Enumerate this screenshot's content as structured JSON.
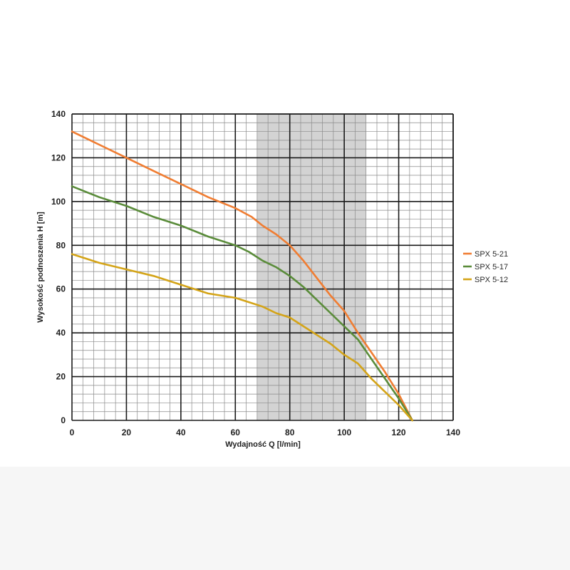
{
  "chart_data": {
    "type": "line",
    "title": "",
    "xlabel": "Wydajność Q [l/min]",
    "ylabel": "Wysokość podnoszenia H [m]",
    "xlim": [
      0,
      140
    ],
    "ylim": [
      0,
      140
    ],
    "x_ticks": [
      0,
      20,
      40,
      60,
      80,
      100,
      120,
      140
    ],
    "y_ticks": [
      0,
      20,
      40,
      60,
      80,
      100,
      120,
      140
    ],
    "x_minor_step": 4,
    "y_minor_step": 4,
    "grid": true,
    "highlight_band": {
      "x_from": 68,
      "x_to": 108,
      "color": "#d3d3d3"
    },
    "legend_position": "right",
    "series": [
      {
        "name": "SPX 5-21",
        "color": "#f07d32",
        "points": [
          [
            0,
            132
          ],
          [
            10,
            126
          ],
          [
            20,
            120
          ],
          [
            30,
            114
          ],
          [
            40,
            108
          ],
          [
            50,
            102
          ],
          [
            60,
            97
          ],
          [
            66,
            93
          ],
          [
            70,
            89
          ],
          [
            75,
            85
          ],
          [
            80,
            80
          ],
          [
            85,
            73
          ],
          [
            90,
            65
          ],
          [
            95,
            57
          ],
          [
            100,
            50
          ],
          [
            105,
            40
          ],
          [
            110,
            31
          ],
          [
            115,
            22
          ],
          [
            120,
            12
          ],
          [
            125,
            0
          ]
        ]
      },
      {
        "name": "SPX 5-17",
        "color": "#5a8c3a",
        "points": [
          [
            0,
            107
          ],
          [
            10,
            102
          ],
          [
            20,
            98
          ],
          [
            30,
            93
          ],
          [
            40,
            89
          ],
          [
            50,
            84
          ],
          [
            60,
            80
          ],
          [
            65,
            77
          ],
          [
            70,
            73
          ],
          [
            75,
            70
          ],
          [
            80,
            66
          ],
          [
            85,
            61
          ],
          [
            90,
            55
          ],
          [
            95,
            49
          ],
          [
            100,
            43
          ],
          [
            105,
            37
          ],
          [
            110,
            28
          ],
          [
            115,
            19
          ],
          [
            120,
            10
          ],
          [
            125,
            0
          ]
        ]
      },
      {
        "name": "SPX 5-12",
        "color": "#d4a418",
        "points": [
          [
            0,
            76
          ],
          [
            10,
            72
          ],
          [
            20,
            69
          ],
          [
            30,
            66
          ],
          [
            40,
            62
          ],
          [
            50,
            58
          ],
          [
            60,
            56
          ],
          [
            65,
            54
          ],
          [
            70,
            52
          ],
          [
            75,
            49
          ],
          [
            80,
            47
          ],
          [
            85,
            43
          ],
          [
            90,
            39
          ],
          [
            95,
            35
          ],
          [
            100,
            30
          ],
          [
            105,
            26
          ],
          [
            110,
            19
          ],
          [
            115,
            13
          ],
          [
            120,
            7
          ],
          [
            125,
            0
          ]
        ]
      }
    ]
  }
}
